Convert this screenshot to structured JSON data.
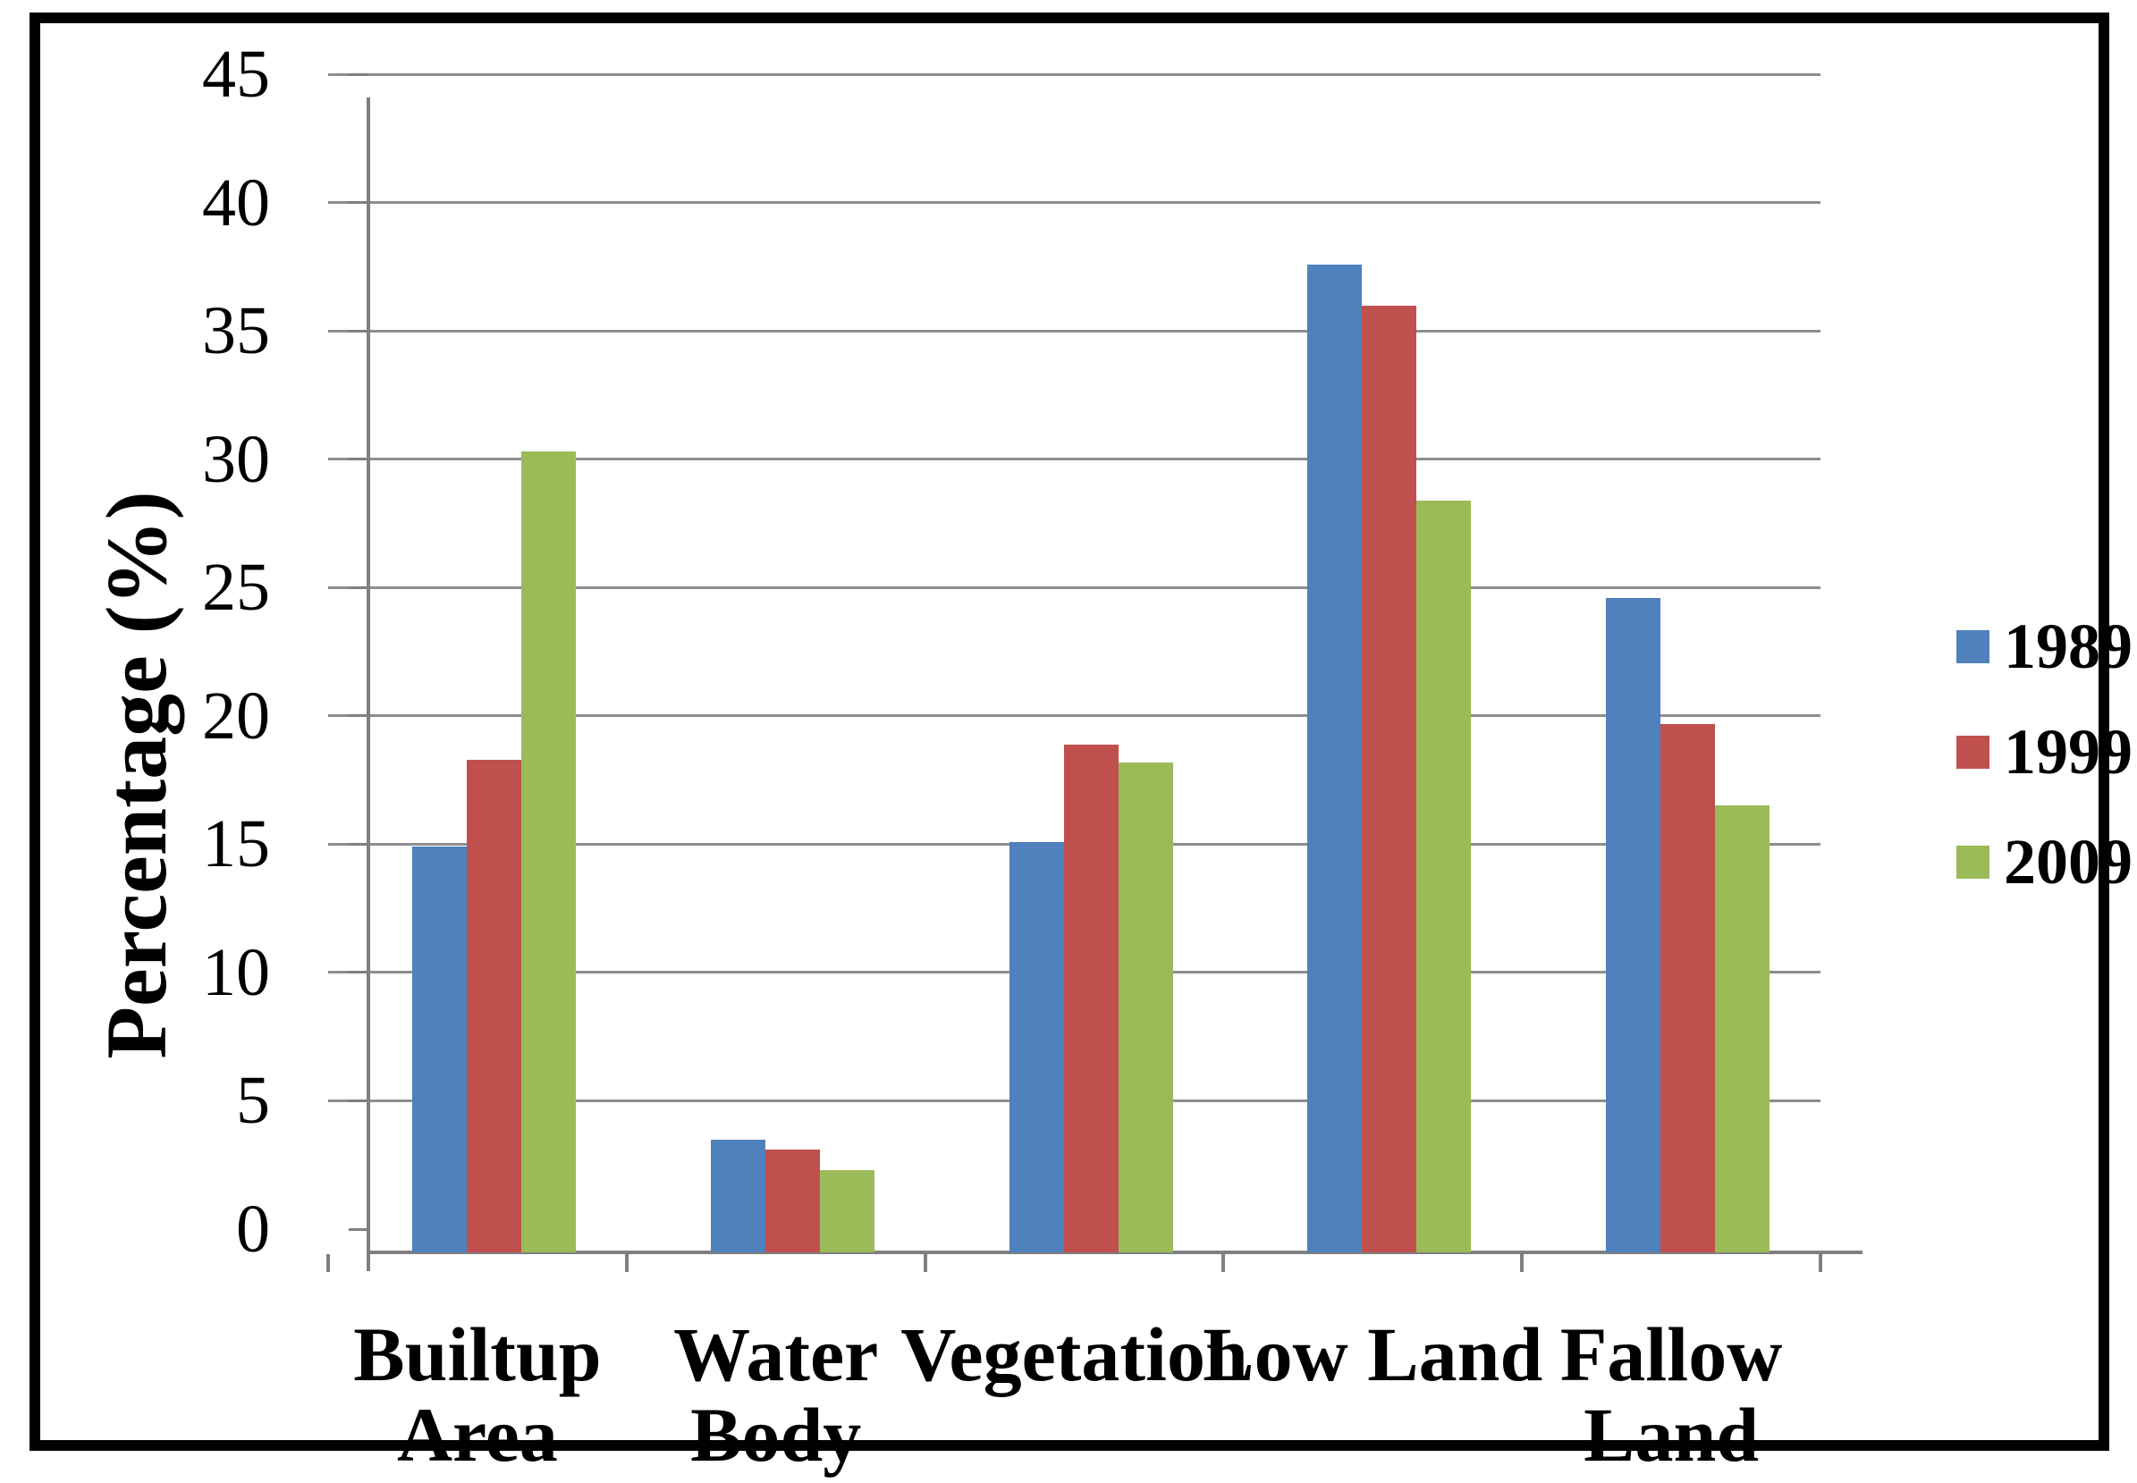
{
  "chart_data": {
    "type": "bar",
    "title": "",
    "xlabel": "",
    "ylabel": "Percentage (%)",
    "ylim": [
      0,
      45
    ],
    "ytick_step": 5,
    "yticks": [
      0,
      5,
      10,
      15,
      20,
      25,
      30,
      35,
      40,
      45
    ],
    "grid": "horizontal",
    "legend_position": "right",
    "categories": [
      "Builtup Area",
      "Water Body",
      "Vegetation",
      "Low Land",
      "Fallow Land"
    ],
    "category_display": [
      "Builtup\nArea",
      "Water\nBody",
      "Vegetation",
      "Low Land",
      "Fallow\nLand"
    ],
    "series": [
      {
        "name": "1989",
        "color": "#4F81BD",
        "values": [
          15.8,
          4.4,
          16.0,
          38.5,
          25.5
        ]
      },
      {
        "name": "1999",
        "color": "#C0504D",
        "values": [
          19.2,
          4.0,
          19.8,
          36.9,
          20.6
        ]
      },
      {
        "name": "2009",
        "color": "#9BBB59",
        "values": [
          31.2,
          3.2,
          19.1,
          29.3,
          17.4
        ]
      }
    ]
  },
  "axis": {
    "y_title": "Percentage (%)"
  },
  "colors": {
    "series_1989": "#4F81BD",
    "series_1999": "#C0504D",
    "series_2009": "#9BBB59",
    "gridline": "#8E8E8E",
    "axis_line": "#7F7F7F",
    "frame_border": "#000000",
    "background": "#FFFFFF"
  }
}
